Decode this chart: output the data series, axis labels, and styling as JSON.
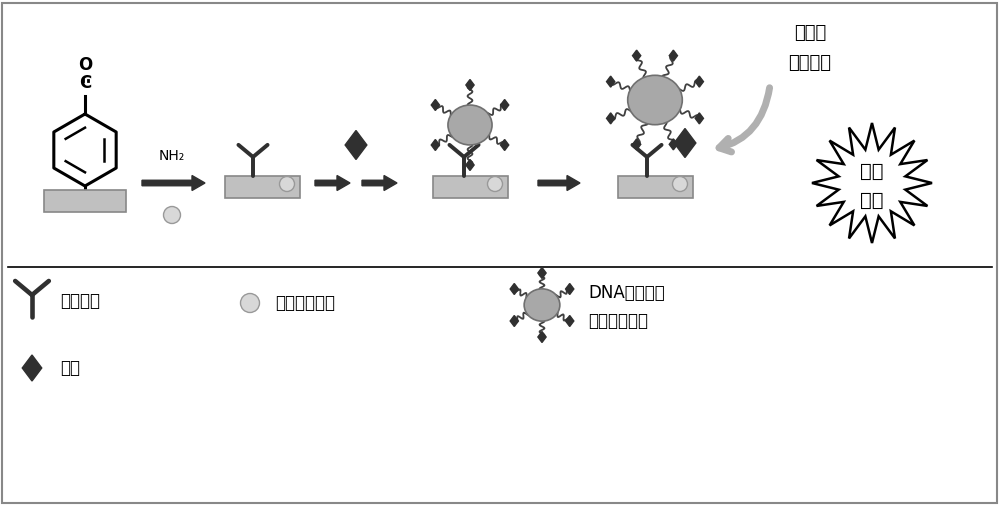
{
  "bg_color": "#ffffff",
  "label_antibody": "捕捉抗体",
  "label_bsa": "牛血清白蛋白",
  "label_antigen": "抗原",
  "label_probe_line1": "DNA醂标记銀",
  "label_probe_line2": "纳米粒子探针",
  "label_luminol_line1": "鲁米诺",
  "label_luminol_line2": "过氧化氢",
  "label_chemilum_line1": "化学",
  "label_chemilum_line2": "发光",
  "label_nh2": "NH₂",
  "platform_color": "#c0c0c0",
  "platform_edge": "#888888",
  "nano_color": "#a8a8a8",
  "dark_color": "#303030",
  "arm_color": "#404040",
  "bsa_color": "#d8d8d8",
  "arrow_gray": "#b0b0b0",
  "text_color": "#000000"
}
